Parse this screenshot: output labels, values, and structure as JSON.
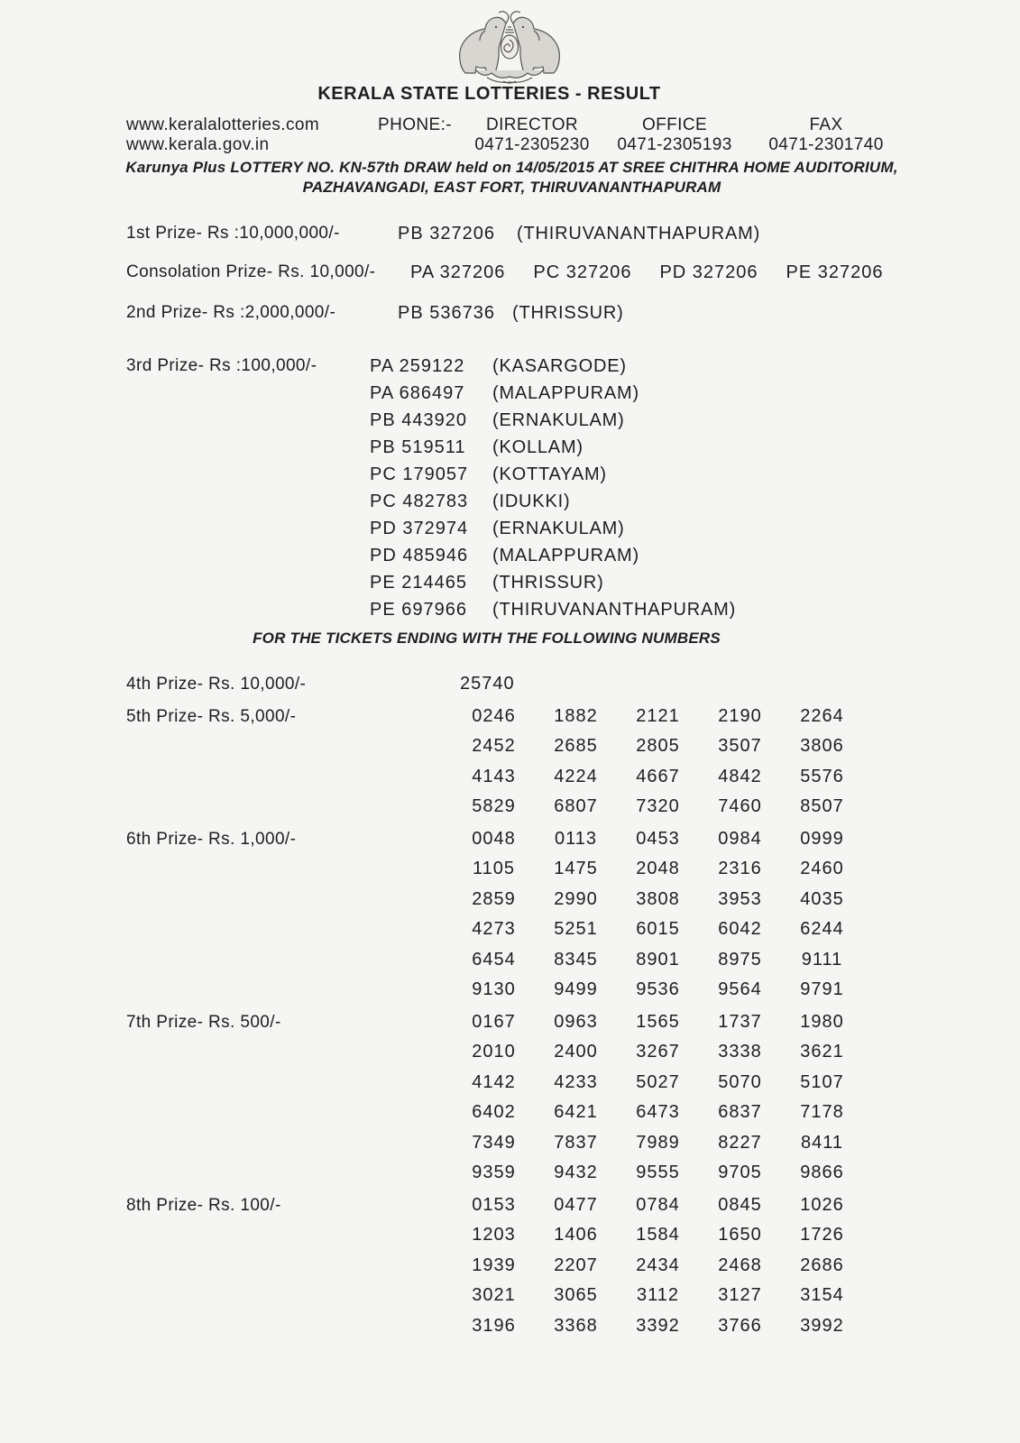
{
  "header": {
    "title": "KERALA STATE LOTTERIES - RESULT",
    "emblem_icon": "kerala-government-emblem",
    "websites": [
      "www.keralalotteries.com",
      "www.kerala.gov.in"
    ],
    "phone_label": "PHONE:-",
    "contacts": [
      {
        "label": "DIRECTOR",
        "number": "0471-2305230"
      },
      {
        "label": "OFFICE",
        "number": "0471-2305193"
      },
      {
        "label": "FAX",
        "number": "0471-2301740"
      }
    ],
    "draw_line1": "Karunya Plus LOTTERY NO. KN-57th DRAW held on 14/05/2015 AT SREE CHITHRA HOME AUDITORIUM,",
    "draw_line2": "PAZHAVANGADI, EAST FORT, THIRUVANANTHAPURAM"
  },
  "top_prizes": {
    "first": {
      "label": "1st Prize- Rs :10,000,000/-",
      "ticket": "PB 327206",
      "district": "(THIRUVANANTHAPURAM)"
    },
    "consolation": {
      "label": "Consolation Prize- Rs. 10,000/-",
      "tickets": [
        "PA 327206",
        "PC 327206",
        "PD 327206",
        "PE 327206"
      ]
    },
    "second": {
      "label": "2nd Prize- Rs :2,000,000/-",
      "ticket": "PB 536736",
      "district": "(THRISSUR)"
    },
    "third": {
      "label": "3rd Prize- Rs :100,000/-",
      "winners": [
        {
          "ticket": "PA 259122",
          "district": "(KASARGODE)"
        },
        {
          "ticket": "PA 686497",
          "district": "(MALAPPURAM)"
        },
        {
          "ticket": "PB 443920",
          "district": "(ERNAKULAM)"
        },
        {
          "ticket": "PB 519511",
          "district": "(KOLLAM)"
        },
        {
          "ticket": "PC 179057",
          "district": "(KOTTAYAM)"
        },
        {
          "ticket": "PC 482783",
          "district": "(IDUKKI)"
        },
        {
          "ticket": "PD 372974",
          "district": "(ERNAKULAM)"
        },
        {
          "ticket": "PD 485946",
          "district": "(MALAPPURAM)"
        },
        {
          "ticket": "PE 214465",
          "district": "(THRISSUR)"
        },
        {
          "ticket": "PE 697966",
          "district": "(THIRUVANANTHAPURAM)"
        }
      ]
    }
  },
  "ending_section": {
    "heading": "FOR THE TICKETS ENDING WITH THE FOLLOWING NUMBERS",
    "prizes": [
      {
        "label": "4th Prize- Rs. 10,000/-",
        "rows": [
          [
            "25740"
          ]
        ]
      },
      {
        "label": "5th Prize- Rs. 5,000/-",
        "rows": [
          [
            "0246",
            "1882",
            "2121",
            "2190",
            "2264"
          ],
          [
            "2452",
            "2685",
            "2805",
            "3507",
            "3806"
          ],
          [
            "4143",
            "4224",
            "4667",
            "4842",
            "5576"
          ],
          [
            "5829",
            "6807",
            "7320",
            "7460",
            "8507"
          ]
        ]
      },
      {
        "label": "6th Prize- Rs. 1,000/-",
        "rows": [
          [
            "0048",
            "0113",
            "0453",
            "0984",
            "0999"
          ],
          [
            "1105",
            "1475",
            "2048",
            "2316",
            "2460"
          ],
          [
            "2859",
            "2990",
            "3808",
            "3953",
            "4035"
          ],
          [
            "4273",
            "5251",
            "6015",
            "6042",
            "6244"
          ],
          [
            "6454",
            "8345",
            "8901",
            "8975",
            "9111"
          ],
          [
            "9130",
            "9499",
            "9536",
            "9564",
            "9791"
          ]
        ]
      },
      {
        "label": "7th Prize- Rs. 500/-",
        "rows": [
          [
            "0167",
            "0963",
            "1565",
            "1737",
            "1980"
          ],
          [
            "2010",
            "2400",
            "3267",
            "3338",
            "3621"
          ],
          [
            "4142",
            "4233",
            "5027",
            "5070",
            "5107"
          ],
          [
            "6402",
            "6421",
            "6473",
            "6837",
            "7178"
          ],
          [
            "7349",
            "7837",
            "7989",
            "8227",
            "8411"
          ],
          [
            "9359",
            "9432",
            "9555",
            "9705",
            "9866"
          ]
        ]
      },
      {
        "label": "8th Prize- Rs. 100/-",
        "rows": [
          [
            "0153",
            "0477",
            "0784",
            "0845",
            "1026"
          ],
          [
            "1203",
            "1406",
            "1584",
            "1650",
            "1726"
          ],
          [
            "1939",
            "2207",
            "2434",
            "2468",
            "2686"
          ],
          [
            "3021",
            "3065",
            "3112",
            "3127",
            "3154"
          ],
          [
            "3196",
            "3368",
            "3392",
            "3766",
            "3992"
          ]
        ]
      }
    ]
  }
}
